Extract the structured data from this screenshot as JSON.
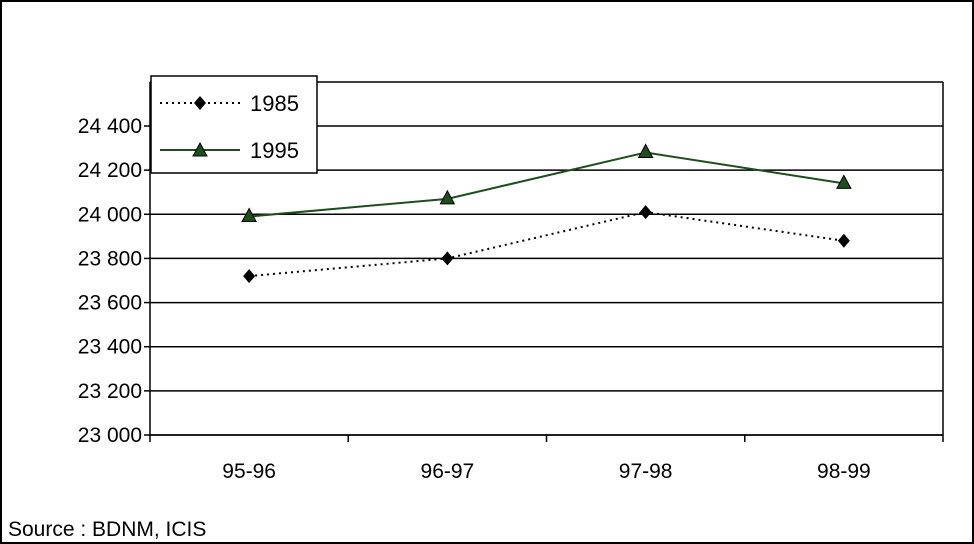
{
  "chart_data": {
    "type": "line",
    "categories": [
      "95-96",
      "96-97",
      "97-98",
      "98-99"
    ],
    "series": [
      {
        "name": "1985",
        "values": [
          23720,
          23800,
          24010,
          23880
        ],
        "color": "#000000",
        "line_style": "dotted",
        "marker": "diamond"
      },
      {
        "name": "1995",
        "values": [
          23990,
          24070,
          24280,
          24140
        ],
        "color": "#1e4d1e",
        "line_style": "solid",
        "marker": "triangle"
      }
    ],
    "y_ticks": [
      23000,
      23200,
      23400,
      23600,
      23800,
      24000,
      24200,
      24400
    ],
    "y_tick_labels": [
      "23 000",
      "23 200",
      "23 400",
      "23 600",
      "23 800",
      "24 000",
      "24 200",
      "24 400"
    ],
    "ylim": [
      23000,
      24400
    ],
    "grid": true,
    "legend_position": "top-left",
    "source": "Source : BDNM, ICIS"
  }
}
